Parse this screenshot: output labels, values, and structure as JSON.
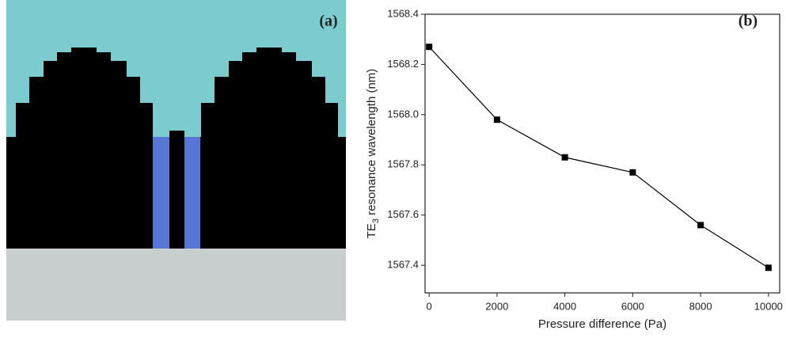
{
  "panel_a": {
    "label": "(a)"
  },
  "chart_data": {
    "type": "line",
    "panel_label": "(b)",
    "x_label": "Pressure difference (Pa)",
    "y_label_parts": [
      "TE",
      "3",
      " resonance wavelength (nm)"
    ],
    "x": [
      0,
      2000,
      4000,
      6000,
      8000,
      10000
    ],
    "series": [
      {
        "color": "#000000",
        "values": [
          1568.27,
          1567.98,
          1567.83,
          1567.77,
          1567.56,
          1567.39
        ]
      }
    ],
    "xlim": [
      -120,
      10330
    ],
    "ylim": [
      1567.29,
      1568.4
    ],
    "xticks": [
      0,
      2000,
      4000,
      6000,
      8000,
      10000
    ],
    "yticks": [
      1567.4,
      1567.6,
      1567.8,
      {
        "value": 1568.0,
        "label": "1568.0"
      },
      1568.2,
      1568.4
    ],
    "grid": false
  }
}
